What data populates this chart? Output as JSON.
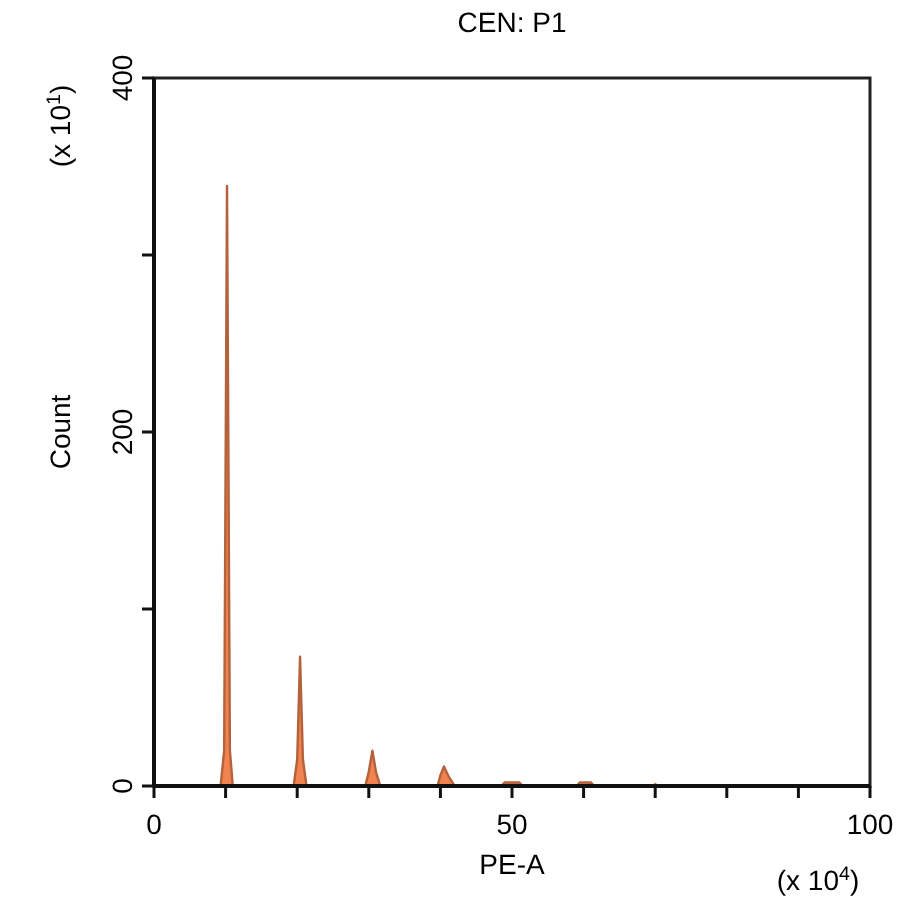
{
  "chart_data": {
    "type": "area",
    "title": "CEN: P1",
    "xlabel": "PE-A",
    "ylabel": "Count",
    "annotations": [
      "(x 10$^{1}$)",
      "(x 10$^{4}$)"
    ],
    "x": [
      0,
      9.3,
      9.8,
      10.2,
      10.6,
      11.0,
      19.5,
      20.0,
      20.4,
      20.8,
      21.3,
      29.5,
      30.0,
      30.5,
      31.0,
      31.6,
      39.6,
      40.0,
      40.5,
      41.2,
      42.0,
      48.5,
      49.0,
      51.0,
      51.5,
      59.0,
      59.5,
      61.0,
      61.5,
      69.5,
      70.0,
      70.5,
      100
    ],
    "series": [
      {
        "color": "#f0834f",
        "values": [
          0,
          0,
          20,
          339,
          20,
          0,
          0,
          15,
          73,
          15,
          0,
          0,
          8,
          20,
          8,
          0,
          0,
          6,
          11,
          5,
          0,
          0,
          2,
          2,
          0,
          0,
          2,
          2,
          0,
          0,
          1,
          0,
          0
        ]
      }
    ],
    "xlim": [
      0,
      100
    ],
    "ylim": [
      0,
      400
    ],
    "xticks": [
      0,
      {
        "value": 10,
        "label": null
      },
      {
        "value": 20,
        "label": null
      },
      {
        "value": 30,
        "label": null
      },
      {
        "value": 40,
        "label": null
      },
      50,
      {
        "value": 60,
        "label": null
      },
      {
        "value": 70,
        "label": null
      },
      {
        "value": 80,
        "label": null
      },
      {
        "value": 90,
        "label": null
      },
      100
    ],
    "yticks": [
      0,
      {
        "value": 100,
        "label": null
      },
      200,
      {
        "value": 300,
        "label": null
      },
      400
    ],
    "grid": false
  }
}
